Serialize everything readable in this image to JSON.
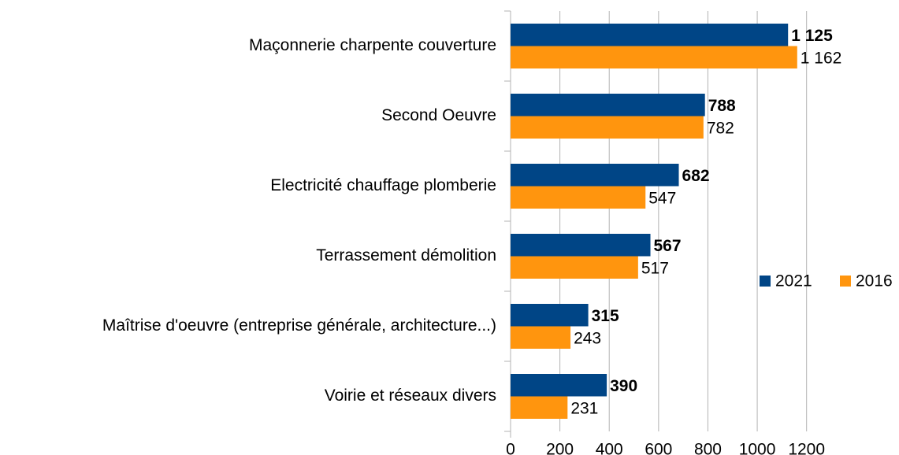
{
  "chart_data": {
    "type": "bar",
    "orientation": "horizontal",
    "categories": [
      "Maçonnerie charpente couverture",
      "Second Oeuvre",
      "Electricité chauffage plomberie",
      "Terrassement démolition",
      "Maîtrise d'oeuvre (entreprise générale, architecture...)",
      "Voirie et réseaux divers"
    ],
    "series": [
      {
        "name": "2021",
        "color": "#004586",
        "values": [
          1125,
          788,
          682,
          567,
          315,
          390
        ],
        "value_labels": [
          "1 125",
          "788",
          "682",
          "567",
          "315",
          "390"
        ],
        "label_bold": true
      },
      {
        "name": "2016",
        "color": "#ff950e",
        "values": [
          1162,
          782,
          547,
          517,
          243,
          231
        ],
        "value_labels": [
          "1 162",
          "782",
          "547",
          "517",
          "243",
          "231"
        ],
        "label_bold": false
      }
    ],
    "xlim": [
      0,
      1300
    ],
    "xticks": [
      0,
      200,
      400,
      600,
      800,
      1000,
      1200
    ],
    "grid": true,
    "legend": "right"
  }
}
